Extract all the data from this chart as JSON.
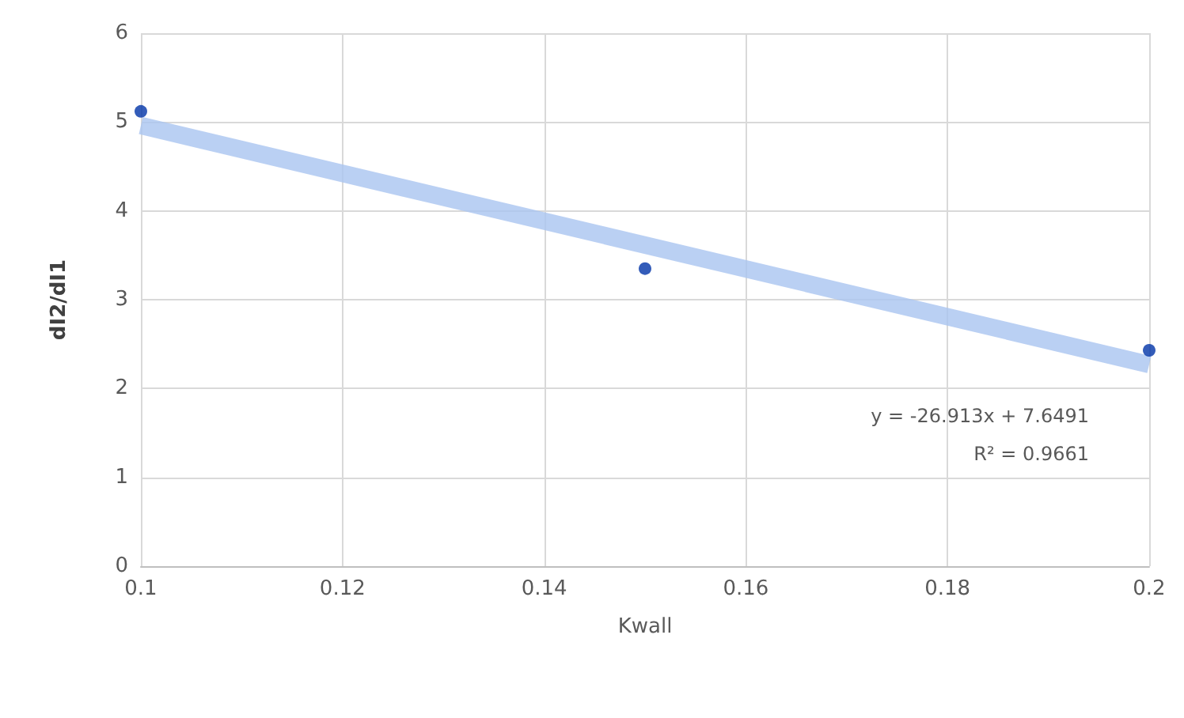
{
  "chart_data": {
    "type": "scatter",
    "xlabel": "Kwall",
    "ylabel": "dI2/dI1",
    "xlim": [
      0.1,
      0.2
    ],
    "xticks": [
      0.1,
      0.12,
      0.14,
      0.16,
      0.18,
      0.2
    ],
    "ylim": [
      0,
      6
    ],
    "yticks": [
      0,
      1,
      2,
      3,
      4,
      5,
      6
    ],
    "grid": true,
    "series": [
      {
        "type": "line",
        "color": "#a9c4f0",
        "x": [
          0.1,
          0.2
        ],
        "values": [
          4.96,
          2.27
        ],
        "marker": "none",
        "line_style": "solid"
      },
      {
        "color": "#0033a8",
        "x": [
          0.1,
          0.15,
          0.2
        ],
        "values": [
          5.12,
          3.35,
          2.43
        ],
        "marker": "circle"
      }
    ],
    "annotations": [
      "y = -26.913x + 7.6491",
      "R² = 0.9661"
    ]
  }
}
